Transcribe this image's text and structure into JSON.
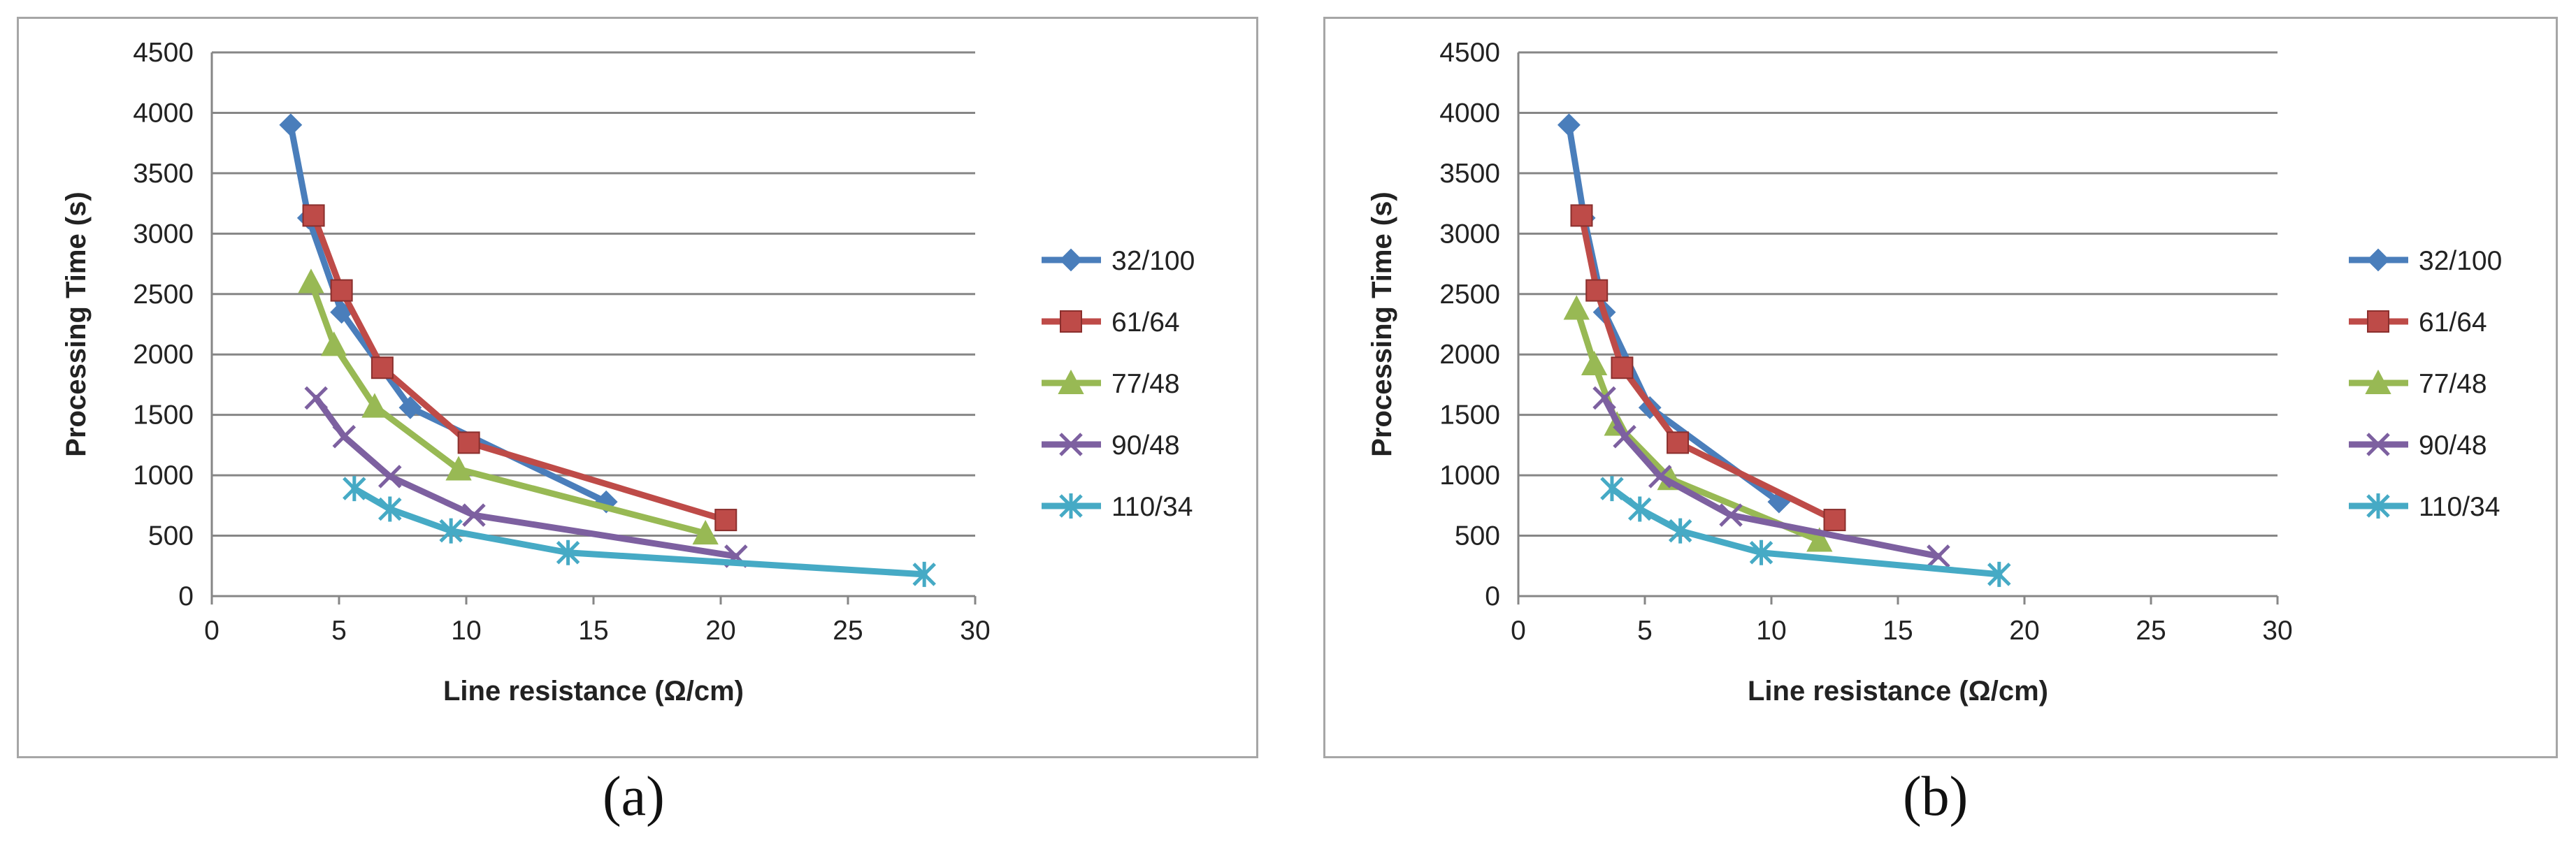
{
  "chart_data": [
    {
      "type": "line",
      "panel_label": "(a)",
      "xlabel": "Line resistance (Ω/cm)",
      "ylabel": "Processing Time (s)",
      "xlim": [
        0,
        30
      ],
      "ylim": [
        0,
        4500
      ],
      "xticks": [
        "0",
        "5",
        "10",
        "15",
        "20",
        "25",
        "30"
      ],
      "yticks": [
        "0",
        "500",
        "1000",
        "1500",
        "2000",
        "2500",
        "3000",
        "3500",
        "4000",
        "4500"
      ],
      "grid": "horizontal",
      "legend_position": "right",
      "series": [
        {
          "name": "32/100",
          "color": "#4a7ebb",
          "marker": "diamond",
          "x": [
            3.1,
            3.8,
            5.1,
            7.8,
            15.5
          ],
          "y": [
            3900,
            3130,
            2350,
            1560,
            780
          ]
        },
        {
          "name": "61/64",
          "color": "#be4b48",
          "marker": "square",
          "x": [
            4.0,
            5.1,
            6.7,
            10.1,
            20.2
          ],
          "y": [
            3150,
            2530,
            1890,
            1270,
            630
          ]
        },
        {
          "name": "77/48",
          "color": "#98b954",
          "marker": "triangle",
          "x": [
            3.9,
            4.8,
            6.4,
            9.7,
            19.4
          ],
          "y": [
            2600,
            2080,
            1570,
            1050,
            520
          ]
        },
        {
          "name": "90/48",
          "color": "#7d60a0",
          "marker": "x",
          "x": [
            4.1,
            5.2,
            7.0,
            10.3,
            20.6
          ],
          "y": [
            1640,
            1320,
            990,
            670,
            330
          ]
        },
        {
          "name": "110/34",
          "color": "#46aac5",
          "marker": "star",
          "x": [
            5.6,
            7.0,
            9.4,
            14.0,
            28.0
          ],
          "y": [
            890,
            720,
            540,
            360,
            180
          ]
        }
      ]
    },
    {
      "type": "line",
      "panel_label": "(b)",
      "xlabel": "Line resistance (Ω/cm)",
      "ylabel": "Processing Time (s)",
      "xlim": [
        0,
        30
      ],
      "ylim": [
        0,
        4500
      ],
      "xticks": [
        "0",
        "5",
        "10",
        "15",
        "20",
        "25",
        "30"
      ],
      "yticks": [
        "0",
        "500",
        "1000",
        "1500",
        "2000",
        "2500",
        "3000",
        "3500",
        "4000",
        "4500"
      ],
      "grid": "horizontal",
      "legend_position": "right",
      "series": [
        {
          "name": "32/100",
          "color": "#4a7ebb",
          "marker": "diamond",
          "x": [
            2.0,
            2.6,
            3.4,
            5.2,
            10.3
          ],
          "y": [
            3900,
            3130,
            2350,
            1560,
            780
          ]
        },
        {
          "name": "61/64",
          "color": "#be4b48",
          "marker": "square",
          "x": [
            2.5,
            3.1,
            4.1,
            6.3,
            12.5
          ],
          "y": [
            3150,
            2530,
            1890,
            1270,
            630
          ]
        },
        {
          "name": "77/48",
          "color": "#98b954",
          "marker": "triangle",
          "x": [
            2.3,
            3.0,
            3.9,
            6.0,
            11.9
          ],
          "y": [
            2380,
            1920,
            1420,
            970,
            460
          ]
        },
        {
          "name": "90/48",
          "color": "#7d60a0",
          "marker": "x",
          "x": [
            3.4,
            4.2,
            5.6,
            8.4,
            16.6
          ],
          "y": [
            1640,
            1320,
            990,
            670,
            330
          ]
        },
        {
          "name": "110/34",
          "color": "#46aac5",
          "marker": "star",
          "x": [
            3.7,
            4.8,
            6.4,
            9.6,
            19.0
          ],
          "y": [
            890,
            720,
            540,
            360,
            180
          ]
        }
      ]
    }
  ]
}
